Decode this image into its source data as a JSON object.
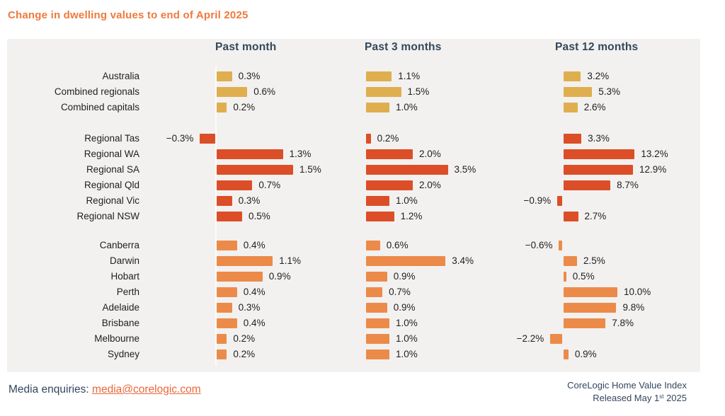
{
  "title": "Change in dwelling values to end of April 2025",
  "footer": {
    "media_label": "Media enquiries: ",
    "media_link": "media@corelogic.com",
    "source_line1": "CoreLogic Home Value Index",
    "released_prefix": "Released May 1",
    "released_sup": "st",
    "released_suffix": " 2025"
  },
  "colors": {
    "title_orange": "#F0793B",
    "header_navy": "#33475C",
    "panel_background": "#F2F1EF",
    "gold": "#DFAE4E",
    "red_orange": "#DC4E27",
    "light_orange": "#EC8A4A",
    "link_orange": "#E9683A",
    "text_dark": "#1F1F1F"
  },
  "chart_data": {
    "type": "bar",
    "orientation": "horizontal",
    "title": "Change in dwelling values to end of April 2025",
    "unit": "%",
    "grid": false,
    "legend": false,
    "columns": [
      {
        "label": "Past month"
      },
      {
        "label": "Past 3 months"
      },
      {
        "label": "Past 12 months"
      }
    ],
    "groups": [
      {
        "name": "national",
        "color": "#DFAE4E",
        "rows": [
          {
            "label": "Australia",
            "values": [
              0.3,
              1.1,
              3.2
            ]
          },
          {
            "label": "Combined regionals",
            "values": [
              0.6,
              1.5,
              5.3
            ]
          },
          {
            "label": "Combined capitals",
            "values": [
              0.2,
              1.0,
              2.6
            ]
          }
        ]
      },
      {
        "name": "regional",
        "color": "#DC4E27",
        "rows": [
          {
            "label": "Regional Tas",
            "values": [
              -0.3,
              0.2,
              3.3
            ]
          },
          {
            "label": "Regional WA",
            "values": [
              1.3,
              2.0,
              13.2
            ]
          },
          {
            "label": "Regional SA",
            "values": [
              1.5,
              3.5,
              12.9
            ]
          },
          {
            "label": "Regional Qld",
            "values": [
              0.7,
              2.0,
              8.7
            ]
          },
          {
            "label": "Regional Vic",
            "values": [
              0.3,
              1.0,
              -0.9
            ]
          },
          {
            "label": "Regional NSW",
            "values": [
              0.5,
              1.2,
              2.7
            ]
          }
        ]
      },
      {
        "name": "capitals",
        "color": "#EC8A4A",
        "rows": [
          {
            "label": "Canberra",
            "values": [
              0.4,
              0.6,
              -0.6
            ]
          },
          {
            "label": "Darwin",
            "values": [
              1.1,
              3.4,
              2.5
            ]
          },
          {
            "label": "Hobart",
            "values": [
              0.9,
              0.9,
              0.5
            ]
          },
          {
            "label": "Perth",
            "values": [
              0.4,
              0.7,
              10.0
            ]
          },
          {
            "label": "Adelaide",
            "values": [
              0.3,
              0.9,
              9.8
            ]
          },
          {
            "label": "Brisbane",
            "values": [
              0.4,
              1.0,
              7.8
            ]
          },
          {
            "label": "Melbourne",
            "values": [
              0.2,
              1.0,
              -2.2
            ]
          },
          {
            "label": "Sydney",
            "values": [
              0.2,
              1.0,
              0.9
            ]
          }
        ]
      }
    ]
  }
}
